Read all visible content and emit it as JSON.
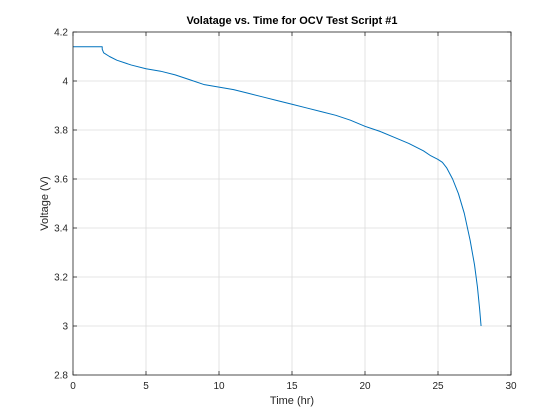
{
  "chart_data": {
    "type": "line",
    "title": "Volatage vs. Time for OCV Test Script #1",
    "xlabel": "Time (hr)",
    "ylabel": "Voltage (V)",
    "xlim": [
      0,
      30
    ],
    "ylim": [
      2.8,
      4.2
    ],
    "xticks": [
      0,
      5,
      10,
      15,
      20,
      25,
      30
    ],
    "yticks": [
      2.8,
      3.0,
      3.2,
      3.4,
      3.6,
      3.8,
      4.0,
      4.2
    ],
    "xtick_labels": [
      "0",
      "5",
      "10",
      "15",
      "20",
      "25",
      "30"
    ],
    "ytick_labels": [
      "2.8",
      "3",
      "3.2",
      "3.4",
      "3.6",
      "3.8",
      "4",
      "4.2"
    ],
    "grid": true,
    "legend": "none",
    "series": [
      {
        "color": "#0072BD",
        "x": [
          0,
          2.0,
          2.0,
          2.1,
          2.5,
          3.0,
          4.0,
          5.0,
          6.0,
          7.0,
          8.0,
          9.0,
          10.0,
          11.0,
          12.0,
          13.0,
          14.0,
          15.0,
          16.0,
          17.0,
          18.0,
          19.0,
          20.0,
          21.0,
          22.0,
          23.0,
          24.0,
          24.5,
          25.0,
          25.3,
          25.6,
          26.0,
          26.4,
          26.8,
          27.2,
          27.5,
          27.7,
          27.85,
          27.95
        ],
        "y": [
          4.14,
          4.14,
          4.13,
          4.115,
          4.1,
          4.085,
          4.065,
          4.05,
          4.04,
          4.025,
          4.005,
          3.985,
          3.975,
          3.965,
          3.95,
          3.935,
          3.92,
          3.905,
          3.89,
          3.875,
          3.86,
          3.84,
          3.815,
          3.795,
          3.77,
          3.745,
          3.715,
          3.695,
          3.68,
          3.668,
          3.645,
          3.6,
          3.54,
          3.46,
          3.35,
          3.25,
          3.16,
          3.07,
          3.0
        ]
      }
    ]
  }
}
